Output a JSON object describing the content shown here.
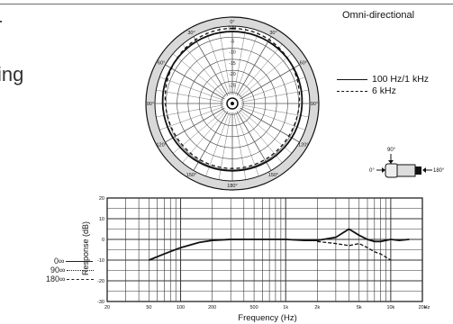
{
  "page": {
    "cut_text_top": "r",
    "cut_text_mid": "ing",
    "left_legend": [
      {
        "label": "0∞",
        "style": "solid"
      },
      {
        "label": "90∞",
        "style": "dotted"
      },
      {
        "label": "180∞",
        "style": "dashed"
      }
    ]
  },
  "polar": {
    "title": "Omni-directional",
    "angle_labels": [
      "0°",
      "30°",
      "60°",
      "90°",
      "120°",
      "150°",
      "180°",
      "150°",
      "120°",
      "90°",
      "60°",
      "30°"
    ],
    "ring_labels": [
      "0dB",
      "-5",
      "-10",
      "-15",
      "-20",
      "-25"
    ],
    "legend": [
      {
        "label": "100 Hz/1 kHz",
        "style": "solid"
      },
      {
        "label": "6 kHz",
        "style": "dashed"
      }
    ]
  },
  "mic_diagram": {
    "labels": [
      "90°",
      "0°",
      "180°"
    ]
  },
  "chart_data": {
    "type": "line",
    "xlabel": "Frequency (Hz)",
    "ylabel": "Response (dB)",
    "x_scale": "log",
    "xlim": [
      20,
      20000
    ],
    "ylim": [
      -30,
      20
    ],
    "x_ticks": [
      "20",
      "50",
      "100",
      "200",
      "500",
      "1k",
      "2k",
      "5k",
      "10k",
      "20k",
      "Hz"
    ],
    "y_ticks": [
      "20",
      "10",
      "0",
      "-10",
      "-20",
      "-30"
    ],
    "grid": true,
    "series": [
      {
        "style": "solid",
        "x": [
          50,
          70,
          100,
          150,
          200,
          300,
          500,
          1000,
          1500,
          2000,
          3000,
          4000,
          5000,
          6000,
          7000,
          8000,
          10000,
          12000,
          15000
        ],
        "y": [
          -10,
          -7,
          -4,
          -1.5,
          -0.5,
          0,
          0,
          0,
          -0.5,
          -0.5,
          1,
          5,
          2,
          0,
          -1,
          -1,
          0,
          -0.5,
          0
        ]
      },
      {
        "style": "dashed",
        "x": [
          2000,
          3000,
          4000,
          5000,
          6000,
          7000,
          8000,
          10000
        ],
        "y": [
          -1,
          -2,
          -3,
          -2,
          -4,
          -6,
          -7,
          -10
        ]
      }
    ]
  }
}
